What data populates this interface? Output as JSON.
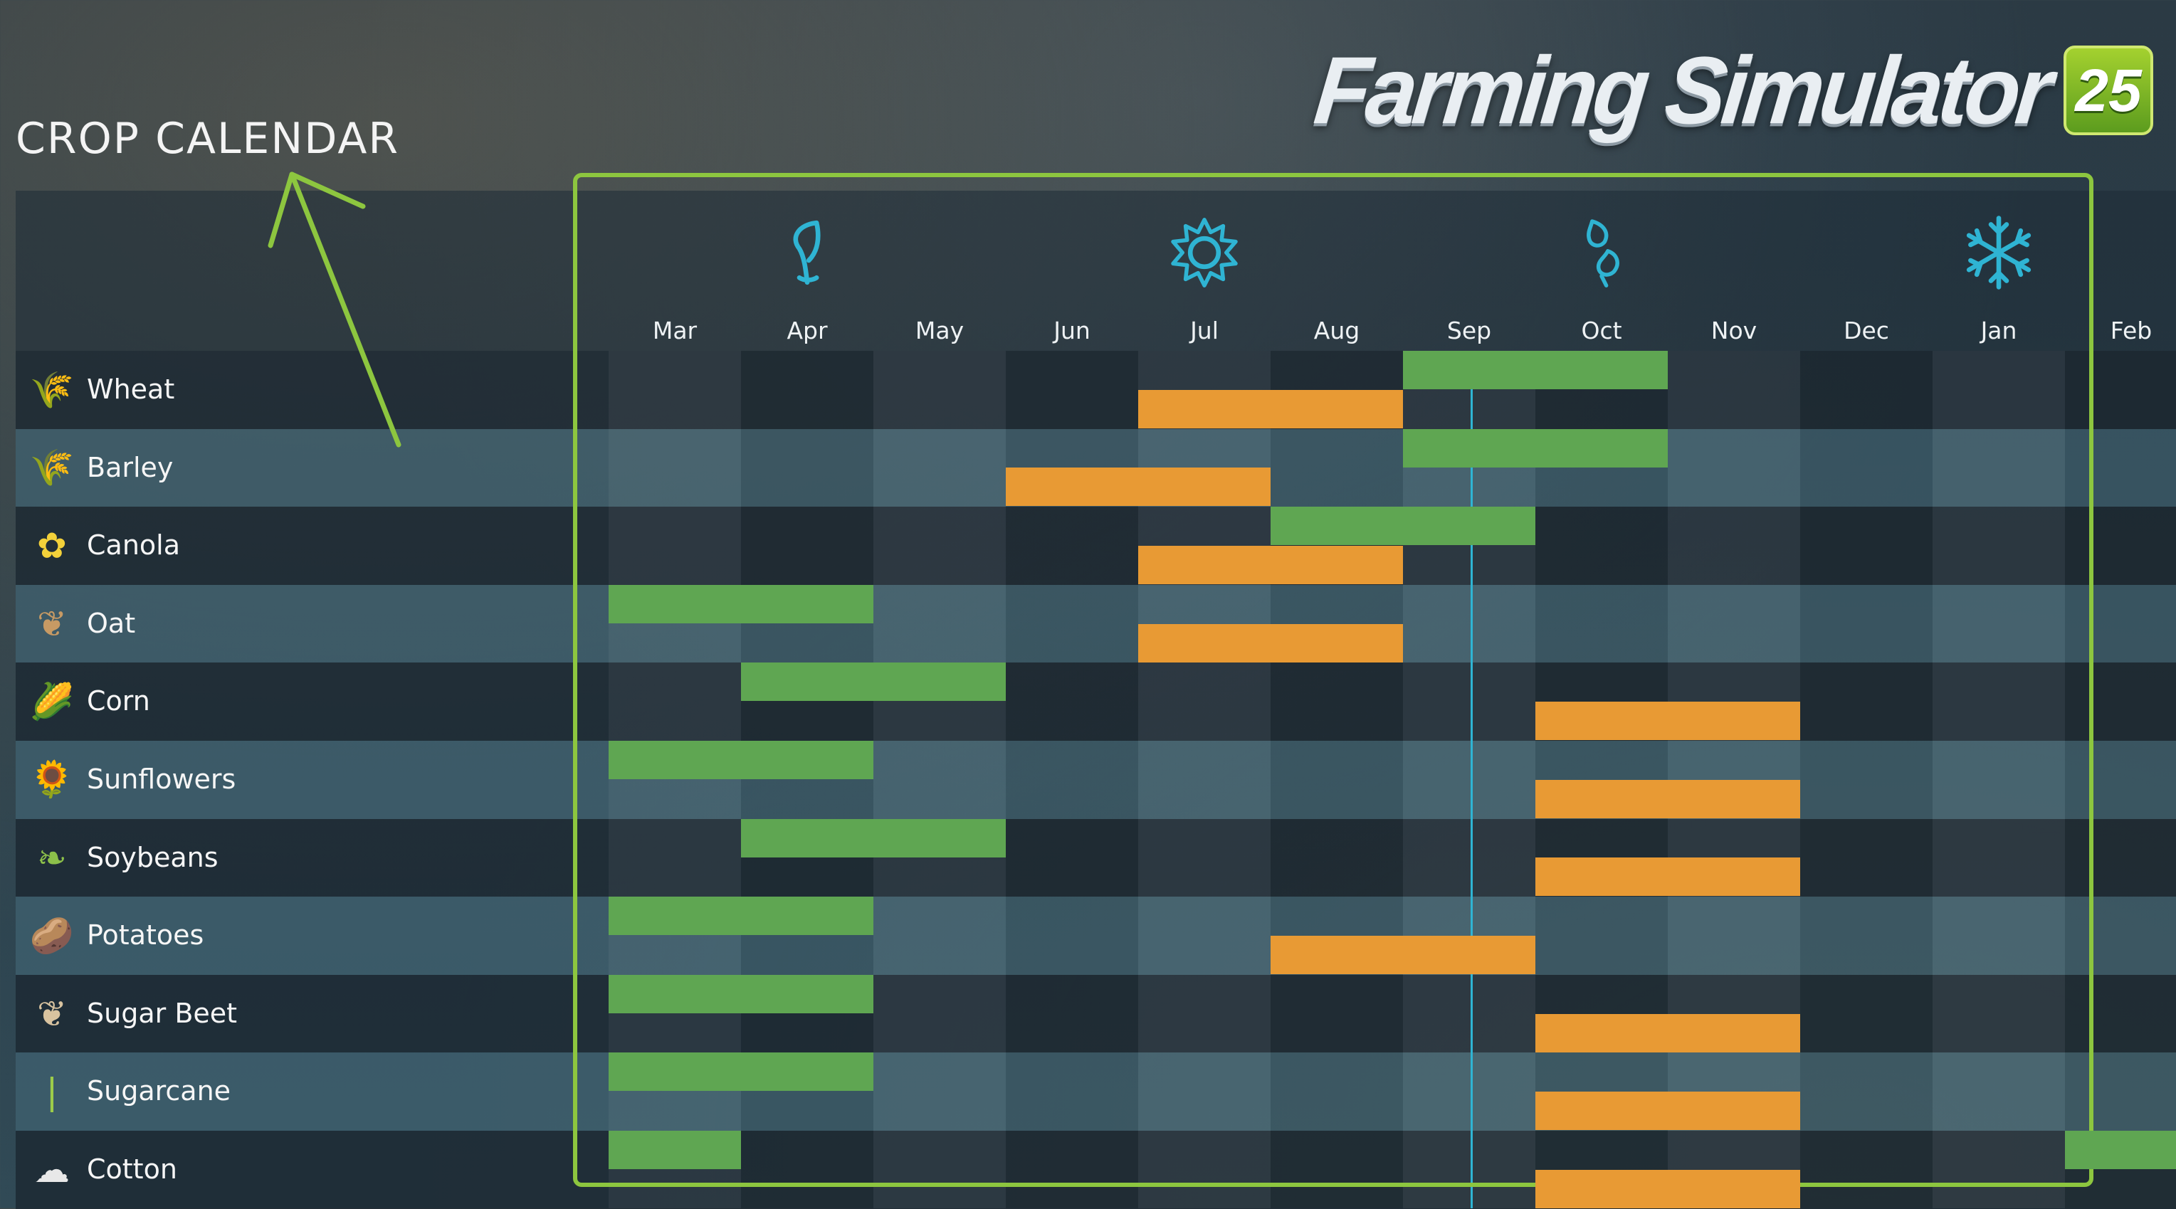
{
  "header": {
    "title": "CROP CALENDAR",
    "logo_text": "Farming Simulator",
    "logo_badge": "25"
  },
  "months": [
    "Mar",
    "Apr",
    "May",
    "Jun",
    "Jul",
    "Aug",
    "Sep",
    "Oct",
    "Nov",
    "Dec",
    "Jan",
    "Feb"
  ],
  "seasons": [
    {
      "name": "spring",
      "icon": "leaf-icon",
      "month": "Apr"
    },
    {
      "name": "summer",
      "icon": "sun-icon",
      "month": "Jul"
    },
    {
      "name": "autumn",
      "icon": "falling-leaves-icon",
      "month": "Oct"
    },
    {
      "name": "winter",
      "icon": "snowflake-icon",
      "month": "Jan"
    }
  ],
  "current_period": "Sep",
  "colors": {
    "accent_frame": "#8dc63f",
    "planting": "#5fa652",
    "harvest": "#e89a34",
    "current_marker": "#2fb4d3"
  },
  "crops": [
    {
      "name": "Wheat",
      "icon": "wheat-icon",
      "plant": [
        6,
        8
      ],
      "harvest": [
        4,
        6
      ]
    },
    {
      "name": "Barley",
      "icon": "barley-icon",
      "plant": [
        6,
        8
      ],
      "harvest": [
        3,
        5
      ]
    },
    {
      "name": "Canola",
      "icon": "canola-icon",
      "plant": [
        5,
        7
      ],
      "harvest": [
        4,
        6
      ]
    },
    {
      "name": "Oat",
      "icon": "oat-icon",
      "plant": [
        0,
        2
      ],
      "harvest": [
        4,
        6
      ]
    },
    {
      "name": "Corn",
      "icon": "corn-icon",
      "plant": [
        1,
        3
      ],
      "harvest": [
        7,
        9
      ]
    },
    {
      "name": "Sunflowers",
      "icon": "sunflower-icon",
      "plant": [
        0,
        2
      ],
      "harvest": [
        7,
        9
      ]
    },
    {
      "name": "Soybeans",
      "icon": "soybean-icon",
      "plant": [
        1,
        3
      ],
      "harvest": [
        7,
        9
      ]
    },
    {
      "name": "Potatoes",
      "icon": "potato-icon",
      "plant": [
        0,
        2
      ],
      "harvest": [
        5,
        7
      ]
    },
    {
      "name": "Sugar Beet",
      "icon": "sugar-beet-icon",
      "plant": [
        0,
        2
      ],
      "harvest": [
        7,
        9
      ]
    },
    {
      "name": "Sugarcane",
      "icon": "sugarcane-icon",
      "plant": [
        0,
        2
      ],
      "harvest": [
        7,
        9
      ]
    },
    {
      "name": "Cotton",
      "icon": "cotton-icon",
      "plant": [
        0,
        1
      ],
      "plant_extra": [
        11,
        12
      ],
      "harvest": [
        7,
        9
      ]
    }
  ]
}
